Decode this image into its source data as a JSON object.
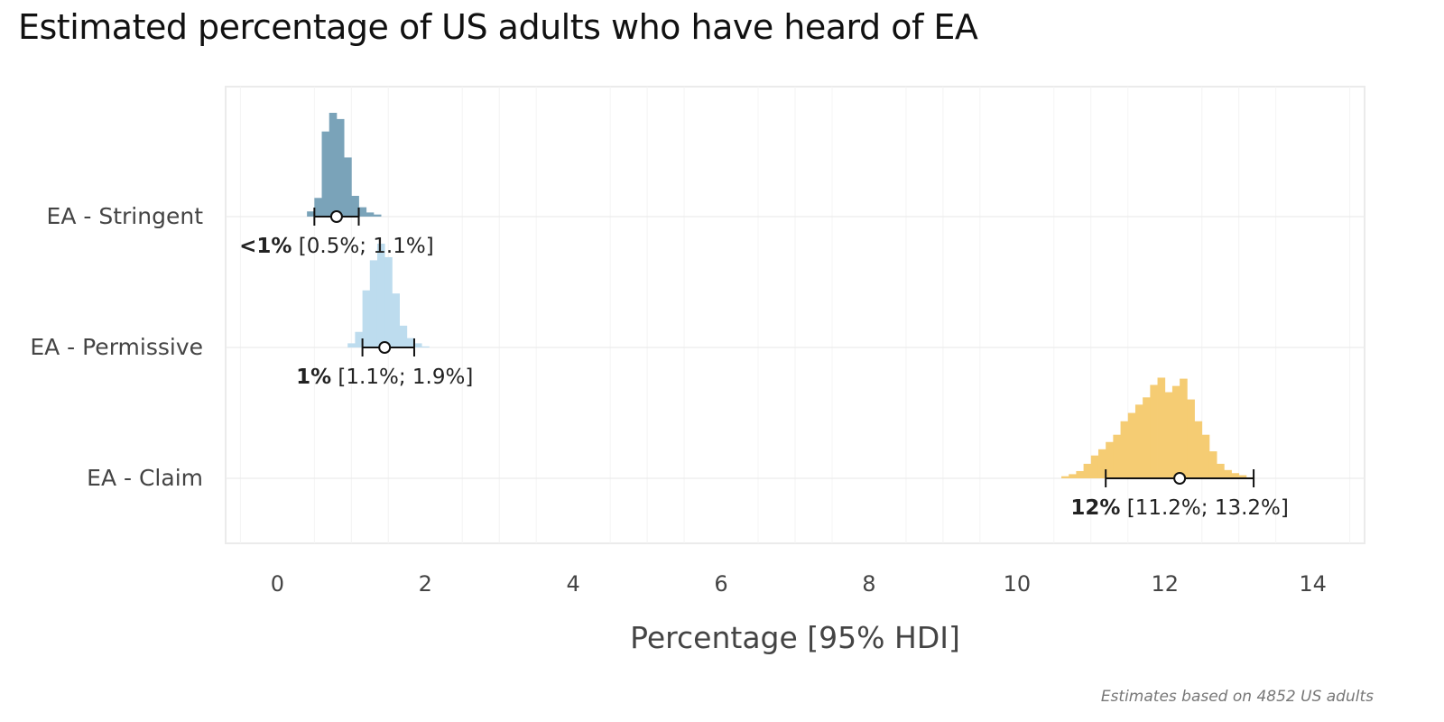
{
  "chart_data": {
    "type": "halfeye",
    "title": "Estimated percentage of US adults who have heard of EA",
    "xlabel": "Percentage [95% HDI]",
    "ylabel": "",
    "xlim": [
      -0.7,
      14.7
    ],
    "xticks": [
      0,
      2,
      4,
      6,
      8,
      10,
      12,
      14
    ],
    "caption": "Estimates based on 4852 US adults",
    "grid": true,
    "series": [
      {
        "name": "EA - Stringent",
        "color": "#7aa3b9",
        "point": 0.8,
        "hdi_low": 0.5,
        "hdi_high": 1.1,
        "label_point": "<1%",
        "label_interval": "[0.5%; 1.1%]",
        "hist_start": 0.4,
        "bin_width": 0.1,
        "densities": [
          0.05,
          0.18,
          0.82,
          1.0,
          0.94,
          0.57,
          0.2,
          0.09,
          0.04,
          0.02
        ]
      },
      {
        "name": "EA - Permissive",
        "color": "#bddcee",
        "point": 1.45,
        "hdi_low": 1.15,
        "hdi_high": 1.85,
        "label_point": "1%",
        "label_interval": "[1.1%; 1.9%]",
        "hist_start": 0.95,
        "bin_width": 0.1,
        "densities": [
          0.04,
          0.15,
          0.55,
          0.84,
          1.0,
          0.87,
          0.52,
          0.21,
          0.09,
          0.04,
          0.01
        ]
      },
      {
        "name": "EA - Claim",
        "color": "#f5cc73",
        "point": 12.2,
        "hdi_low": 11.2,
        "hdi_high": 13.2,
        "label_point": "12%",
        "label_interval": "[11.2%; 13.2%]",
        "hist_start": 10.6,
        "bin_width": 0.1,
        "densities": [
          0.02,
          0.04,
          0.07,
          0.14,
          0.22,
          0.28,
          0.35,
          0.42,
          0.55,
          0.63,
          0.71,
          0.78,
          0.9,
          0.97,
          0.83,
          0.89,
          0.96,
          0.76,
          0.55,
          0.42,
          0.26,
          0.14,
          0.08,
          0.05,
          0.03,
          0.01
        ]
      }
    ]
  }
}
